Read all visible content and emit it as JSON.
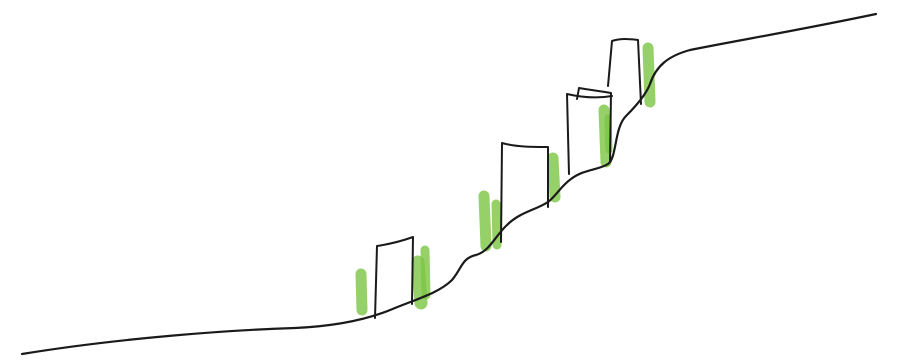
{
  "colors": {
    "background": "#ffffff",
    "line": "#1a1a1a",
    "highlight": "#7cc443"
  },
  "sketch": {
    "description_visible_text": "",
    "flags_count_shown": 5,
    "highlight_marks_shown": 9
  }
}
